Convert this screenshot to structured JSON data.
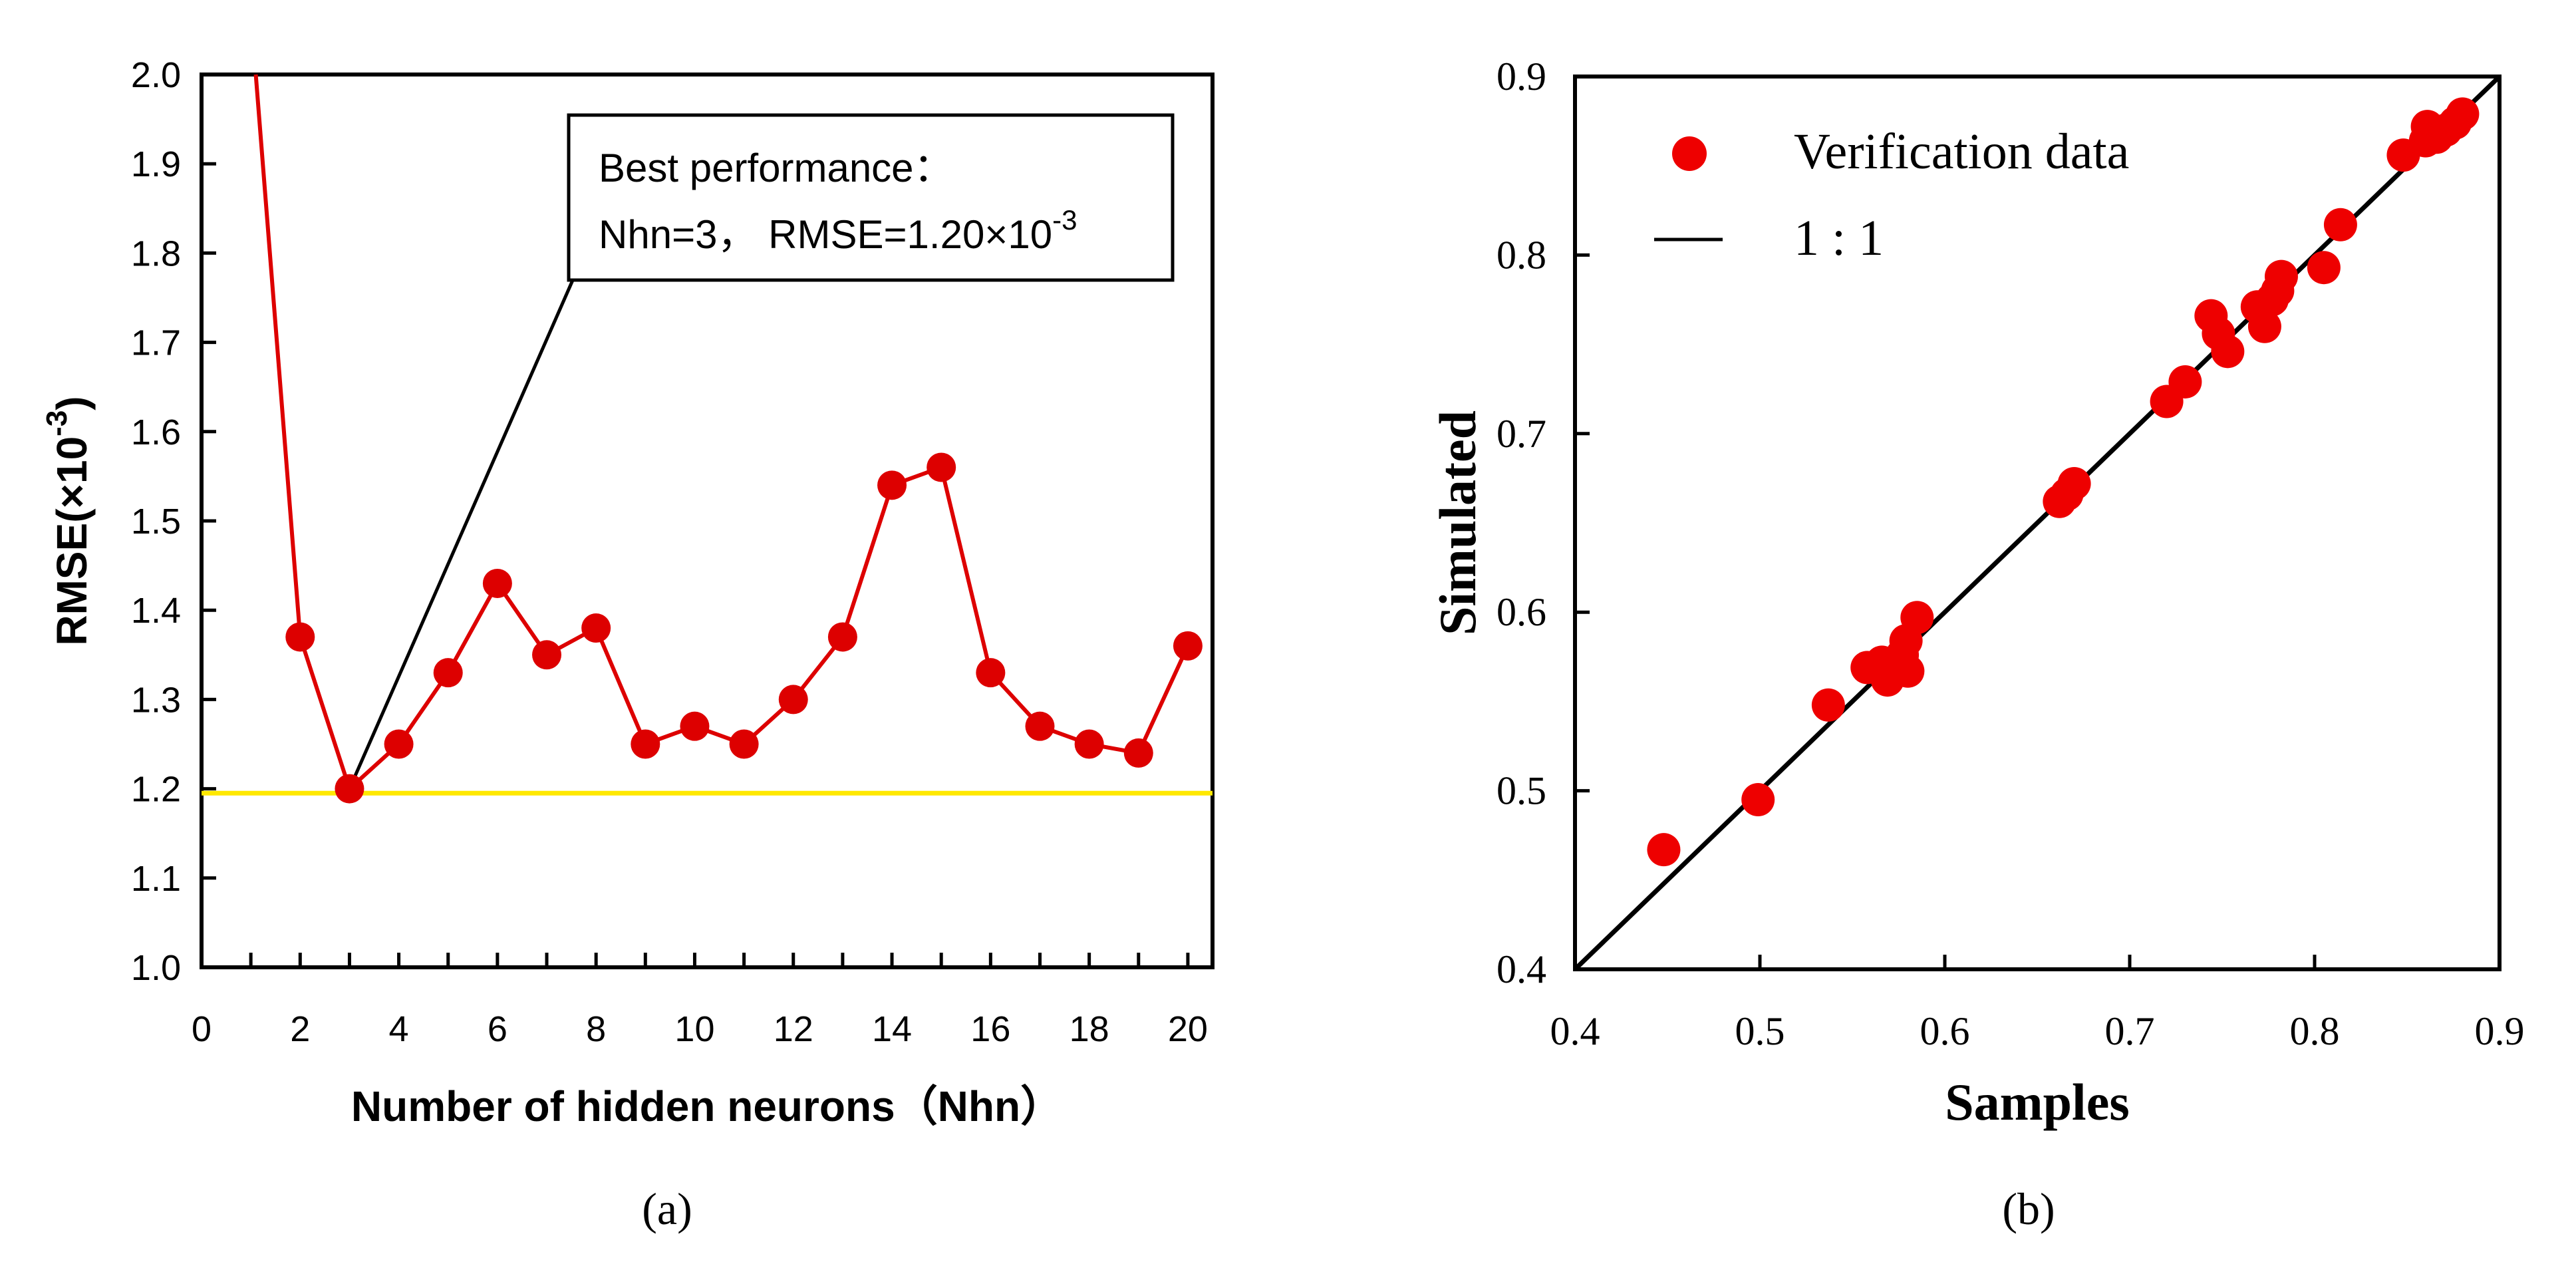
{
  "panel_labels": {
    "a": "(a)",
    "b": "(b)"
  },
  "chart_data": [
    {
      "id": "a",
      "type": "line",
      "title": "",
      "xlabel": "Number of hidden neurons（Nhn）",
      "ylabel": "RMSE(×10",
      "ylabel_exp": "-3",
      "ylabel_close": ")",
      "xlim": [
        0,
        20.5
      ],
      "ylim": [
        1.0,
        2.0
      ],
      "xticks_labeled": [
        0,
        2,
        4,
        6,
        8,
        10,
        12,
        14,
        16,
        18,
        20
      ],
      "xticks_minor": [
        1,
        3,
        5,
        7,
        9,
        11,
        13,
        15,
        17,
        19
      ],
      "yticks": [
        1.0,
        1.1,
        1.2,
        1.3,
        1.4,
        1.5,
        1.6,
        1.7,
        1.8,
        1.9,
        2.0
      ],
      "yticks_labels": [
        "1.0",
        "1.1",
        "1.2",
        "1.3",
        "1.4",
        "1.5",
        "1.6",
        "1.7",
        "1.8",
        "1.9",
        "2.0"
      ],
      "series": [
        {
          "name": "RMSE",
          "color": "#dd0000",
          "line_start": {
            "x": 1.1,
            "y": 2.0
          },
          "x": [
            2,
            3,
            4,
            5,
            6,
            7,
            8,
            9,
            10,
            11,
            12,
            13,
            14,
            15,
            16,
            17,
            18,
            19,
            20
          ],
          "y": [
            1.37,
            1.2,
            1.25,
            1.33,
            1.43,
            1.35,
            1.38,
            1.25,
            1.27,
            1.25,
            1.3,
            1.37,
            1.54,
            1.56,
            1.33,
            1.27,
            1.25,
            1.24,
            1.36
          ]
        }
      ],
      "reference_line": {
        "y": 1.195,
        "color": "#ffe800"
      },
      "annotation": {
        "line1": "Best performance：",
        "line2": "Nhn=3， RMSE=1.20×10",
        "line2_exp": "-3",
        "target": {
          "x": 3,
          "y": 1.2
        }
      }
    },
    {
      "id": "b",
      "type": "scatter",
      "title": "",
      "xlabel": "Samples",
      "ylabel": "Simulated",
      "xlim": [
        0.4,
        0.9
      ],
      "ylim": [
        0.4,
        0.9
      ],
      "xticks": [
        0.4,
        0.5,
        0.6,
        0.7,
        0.8,
        0.9
      ],
      "xticks_labels": [
        "0.4",
        "0.5",
        "0.6",
        "0.7",
        "0.8",
        "0.9"
      ],
      "yticks": [
        0.4,
        0.5,
        0.6,
        0.7,
        0.8,
        0.9
      ],
      "yticks_labels": [
        "0.4",
        "0.5",
        "0.6",
        "0.7",
        "0.8",
        "0.9"
      ],
      "legend": [
        {
          "label": "Verification data",
          "marker": "circle",
          "color": "#ee0000"
        },
        {
          "label": "1 : 1",
          "marker": "line",
          "color": "#000000"
        }
      ],
      "series": [
        {
          "name": "Verification data",
          "color": "#ee0000",
          "points": [
            [
              0.448,
              0.467
            ],
            [
              0.499,
              0.495
            ],
            [
              0.537,
              0.548
            ],
            [
              0.558,
              0.569
            ],
            [
              0.566,
              0.572
            ],
            [
              0.569,
              0.562
            ],
            [
              0.573,
              0.568
            ],
            [
              0.577,
              0.576
            ],
            [
              0.579,
              0.584
            ],
            [
              0.58,
              0.567
            ],
            [
              0.585,
              0.597
            ],
            [
              0.662,
              0.662
            ],
            [
              0.666,
              0.666
            ],
            [
              0.67,
              0.672
            ],
            [
              0.72,
              0.718
            ],
            [
              0.73,
              0.729
            ],
            [
              0.744,
              0.766
            ],
            [
              0.748,
              0.756
            ],
            [
              0.753,
              0.746
            ],
            [
              0.769,
              0.771
            ],
            [
              0.773,
              0.76
            ],
            [
              0.777,
              0.775
            ],
            [
              0.78,
              0.78
            ],
            [
              0.782,
              0.788
            ],
            [
              0.805,
              0.793
            ],
            [
              0.814,
              0.817
            ],
            [
              0.848,
              0.856
            ],
            [
              0.86,
              0.864
            ],
            [
              0.861,
              0.872
            ],
            [
              0.866,
              0.866
            ],
            [
              0.871,
              0.87
            ],
            [
              0.876,
              0.874
            ],
            [
              0.88,
              0.879
            ]
          ]
        }
      ],
      "reference_line": {
        "label": "1 : 1",
        "from": [
          0.4,
          0.4
        ],
        "to": [
          0.9,
          0.9
        ]
      }
    }
  ]
}
